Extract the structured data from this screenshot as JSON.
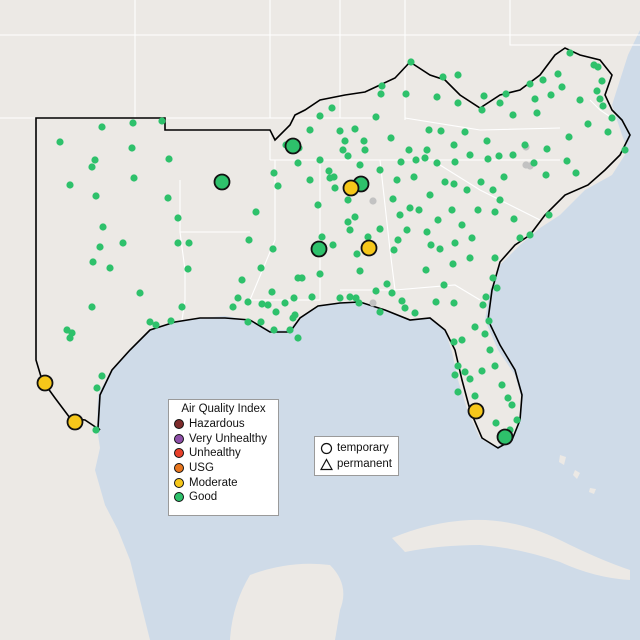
{
  "map": {
    "region": "Southeastern United States",
    "colors": {
      "ocean": "#cfdbe8",
      "land": "#ece9e5",
      "border_state": "#ffffff",
      "region_outline": "#000000"
    }
  },
  "aqi_legend": {
    "title": "Air Quality Index",
    "items": [
      {
        "label": "Hazardous",
        "color": "#7e2b2b"
      },
      {
        "label": "Very Unhealthy",
        "color": "#8e4fa8"
      },
      {
        "label": "Unhealthy",
        "color": "#e8402a"
      },
      {
        "label": "USG",
        "color": "#e8761e"
      },
      {
        "label": "Moderate",
        "color": "#f6c71a"
      },
      {
        "label": "Good",
        "color": "#2ec16b"
      }
    ]
  },
  "type_legend": {
    "items": [
      {
        "label": "temporary",
        "shape": "circle"
      },
      {
        "label": "permanent",
        "shape": "triangle"
      }
    ]
  }
}
